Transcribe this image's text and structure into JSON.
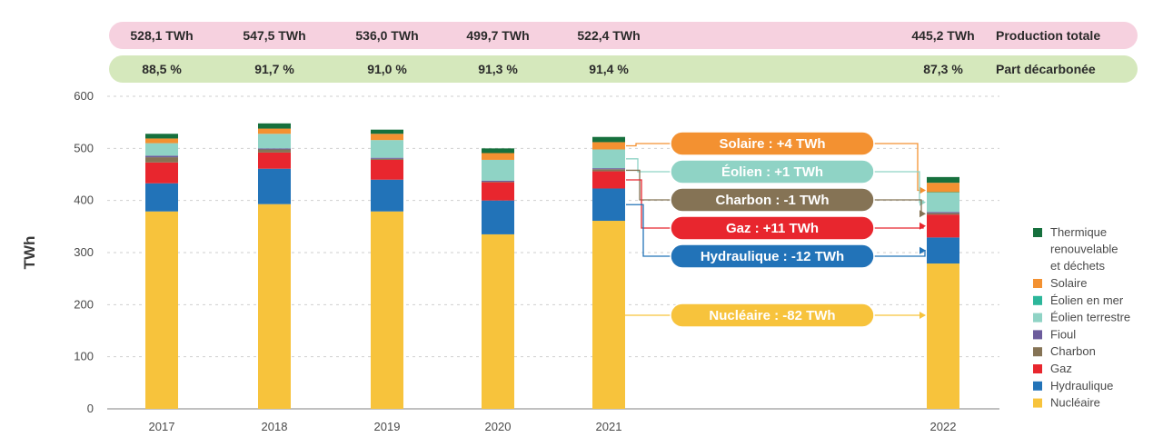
{
  "chart_data": {
    "type": "bar",
    "stacked": true,
    "ylabel": "TWh",
    "ylim": [
      0,
      600
    ],
    "yticks": [
      0,
      100,
      200,
      300,
      400,
      500,
      600
    ],
    "grid": true,
    "categories": [
      "2017",
      "2018",
      "2019",
      "2020",
      "2021",
      "2022"
    ],
    "series": [
      {
        "name": "Nucléaire",
        "color": "#f7c33c",
        "values": [
          379,
          393,
          379,
          335,
          361,
          279
        ]
      },
      {
        "name": "Hydraulique",
        "color": "#2273b8",
        "values": [
          54,
          68,
          61,
          65,
          62,
          50
        ]
      },
      {
        "name": "Gaz",
        "color": "#e8262e",
        "values": [
          40,
          31,
          38,
          35,
          33,
          44
        ]
      },
      {
        "name": "Charbon",
        "color": "#857355",
        "values": [
          10,
          6,
          2,
          1,
          4,
          3
        ]
      },
      {
        "name": "Fioul",
        "color": "#6c5c9c",
        "values": [
          3,
          2,
          2,
          2,
          2,
          2
        ]
      },
      {
        "name": "Éolien terrestre",
        "color": "#8fd3c5",
        "values": [
          24,
          28,
          34,
          40,
          36,
          37
        ]
      },
      {
        "name": "Éolien en mer",
        "color": "#2cb69a",
        "values": [
          0,
          0,
          0,
          0,
          0,
          1
        ]
      },
      {
        "name": "Solaire",
        "color": "#f39131",
        "values": [
          9,
          10,
          12,
          13,
          14,
          18
        ]
      },
      {
        "name": "Thermique renouvelable et déchets",
        "color": "#16703d",
        "values": [
          9,
          10,
          8,
          9,
          10,
          11
        ]
      }
    ],
    "legend_order": [
      "Thermique renouvelable et déchets",
      "Solaire",
      "Éolien en mer",
      "Éolien terrestre",
      "Fioul",
      "Charbon",
      "Gaz",
      "Hydraulique",
      "Nucléaire"
    ],
    "legend_position": "right",
    "production_totale": {
      "label": "Production totale",
      "values": [
        "528,1 TWh",
        "547,5 TWh",
        "536,0 TWh",
        "499,7 TWh",
        "522,4 TWh",
        "445,2 TWh"
      ],
      "color": "#f6d1df"
    },
    "part_decarbonee": {
      "label": "Part décarbonée",
      "values": [
        "88,5 %",
        "91,7 %",
        "91,0 %",
        "91,3 %",
        "91,4 %",
        "87,3 %"
      ],
      "color": "#d5e8bc"
    },
    "annotations": [
      {
        "text": "Solaire : +4 TWh",
        "series": "Solaire",
        "color": "#f39131"
      },
      {
        "text": "Éolien : +1 TWh",
        "series": "Éolien terrestre",
        "color": "#8fd3c5"
      },
      {
        "text": "Charbon : -1 TWh",
        "series": "Charbon",
        "color": "#857355"
      },
      {
        "text": "Gaz : +11 TWh",
        "series": "Gaz",
        "color": "#e8262e"
      },
      {
        "text": "Hydraulique : -12 TWh",
        "series": "Hydraulique",
        "color": "#2273b8"
      },
      {
        "text": "Nucléaire : -82 TWh",
        "series": "Nucléaire",
        "color": "#f7c33c"
      }
    ]
  }
}
